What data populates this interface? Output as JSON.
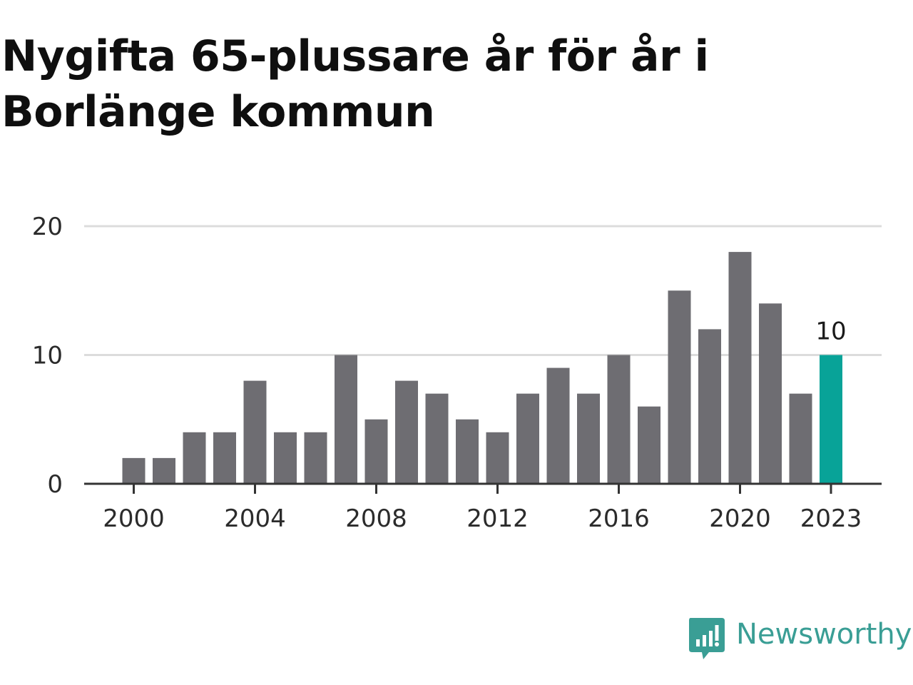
{
  "chart_data": {
    "type": "bar",
    "title": "Nygifta 65-plussare år för år i Borlänge kommun",
    "categories": [
      "2000",
      "2001",
      "2002",
      "2003",
      "2004",
      "2005",
      "2006",
      "2007",
      "2008",
      "2009",
      "2010",
      "2011",
      "2012",
      "2013",
      "2014",
      "2015",
      "2016",
      "2017",
      "2018",
      "2019",
      "2020",
      "2021",
      "2022",
      "2023"
    ],
    "values": [
      2,
      2,
      4,
      4,
      8,
      4,
      4,
      10,
      5,
      8,
      7,
      5,
      4,
      7,
      9,
      7,
      10,
      6,
      15,
      12,
      18,
      14,
      7,
      10
    ],
    "x_tick_labels": [
      "2000",
      "2004",
      "2008",
      "2012",
      "2016",
      "2020",
      "2023"
    ],
    "y_ticks": [
      0,
      10,
      20
    ],
    "ylim": [
      0,
      20
    ],
    "highlight": {
      "category": "2023",
      "label": "10"
    },
    "grid": true,
    "xlabel": "",
    "ylabel": ""
  },
  "colors": {
    "bar": "#6e6d72",
    "highlight": "#08a398",
    "grid": "#dcdcdc",
    "axis": "#333333",
    "brand": "#3a9e95"
  },
  "branding": {
    "logo_text": "Newsworthy",
    "logo_icon": "newsworthy-chart-bubble-icon"
  }
}
